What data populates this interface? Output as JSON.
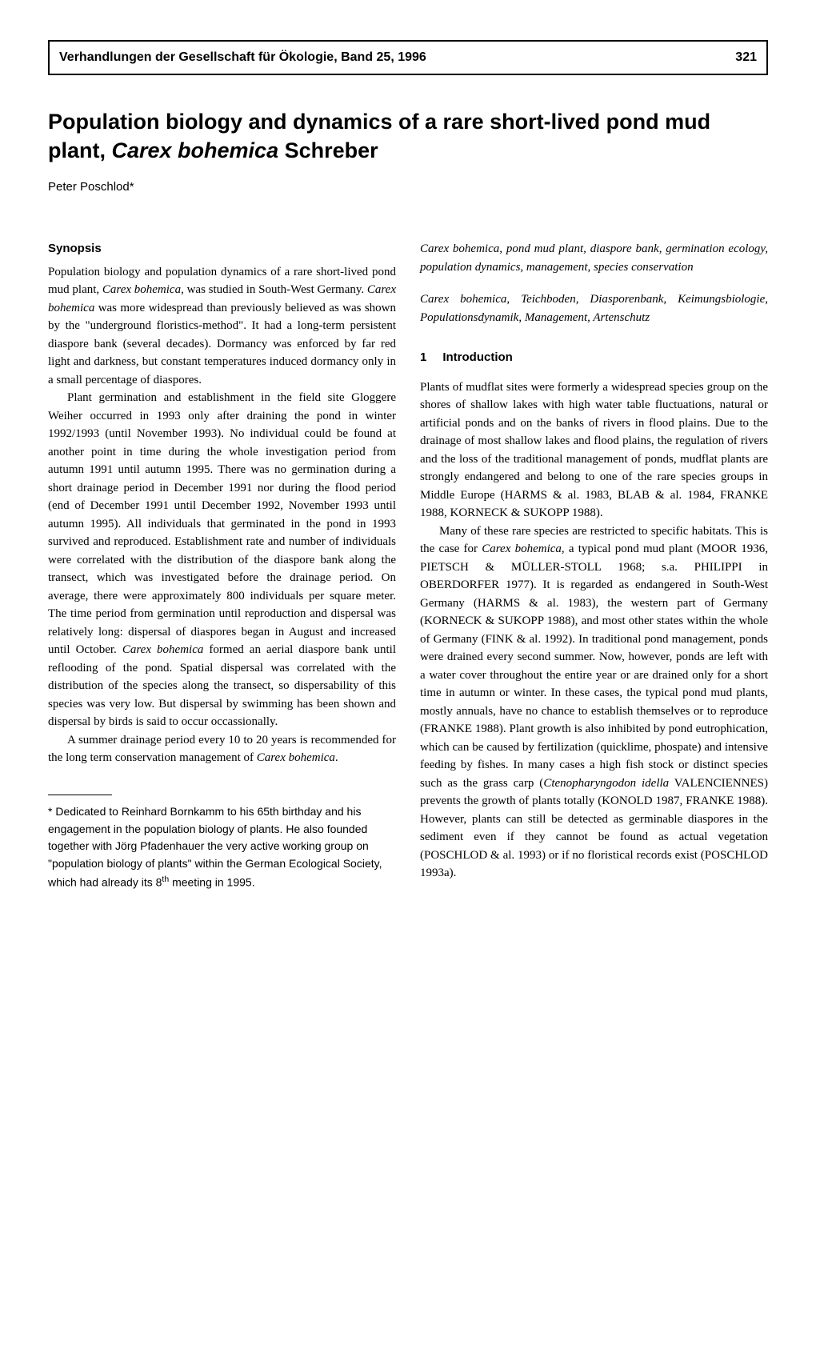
{
  "header": {
    "journal": "Verhandlungen der Gesellschaft für Ökologie, Band 25, 1996",
    "page": "321"
  },
  "title": {
    "line1": "Population biology and dynamics of a rare short-lived pond mud plant, ",
    "species": "Carex bohemica",
    "line2": " Schreber"
  },
  "author": "Peter Poschlod*",
  "synopsis": {
    "heading": "Synopsis",
    "p1": "Population biology and population dynamics of a rare short-lived pond mud plant, Carex bohemica, was studied in South-West Germany. Carex bohemica was more widespread than previously believed as was shown by the \"underground floristics-method\". It had a long-term persistent diaspore bank (several decades). Dormancy was enforced by far red light and darkness, but constant temperatures induced dormancy only in a small percentage of diaspores.",
    "p2": "Plant germination and establishment in the field site Gloggere Weiher occurred in 1993 only after draining the pond in winter 1992/1993 (until November 1993). No individual could be found at another point in time during the whole investigation period from autumn 1991 until autumn 1995. There was no germination during a short drainage period in December 1991 nor during the flood period (end of December 1991 until December 1992, November 1993 until autumn 1995). All individuals that germinated in the pond in 1993 survived and reproduced. Establishment rate and number of individuals were correlated with the distribution of the diaspore bank along the transect, which was investigated before the drainage period. On average, there were approximately 800 individuals per square meter. The time period from germination until reproduction and dispersal was relatively long: dispersal of diaspores began in August and increased until October. Carex bohemica formed an aerial diaspore bank until reflooding of the pond. Spatial dispersal was correlated with the distribution of the species along the transect, so dispersability of this species was very low. But dispersal by swimming has been shown and dispersal by birds is said to occur occassionally.",
    "p3": "A summer drainage period every 10 to 20 years is recommended for the long term conservation management of Carex bohemica."
  },
  "keywords": {
    "en": "Carex bohemica, pond mud plant, diaspore bank, germination ecology, population dynamics, management, species conservation",
    "de": "Carex bohemica, Teichboden, Diasporenbank, Keimungsbiologie, Populationsdynamik, Management, Artenschutz"
  },
  "introduction": {
    "num": "1",
    "heading": "Introduction",
    "p1": "Plants of mudflat sites were formerly a widespread species group on the shores of shallow lakes with high water table fluctuations, natural or artificial ponds and on the banks of rivers in flood plains. Due to the drainage of most shallow lakes and flood plains, the regulation of rivers and the loss of the traditional management of ponds, mudflat plants are strongly endangered and belong to one of the rare species groups in Middle Europe (HARMS & al. 1983, BLAB & al. 1984, FRANKE 1988, KORNECK & SUKOPP 1988).",
    "p2": "Many of these rare species are restricted to specific habitats. This is the case for Carex bohemica, a typical pond mud plant (MOOR 1936, PIETSCH & MÜLLER-STOLL 1968; s.a. PHILIPPI in OBERDORFER 1977). It is regarded as endangered in South-West Germany (HARMS & al. 1983), the western part of Germany (KORNECK & SUKOPP 1988), and most other states within the whole of Germany (FINK & al. 1992). In traditional pond management, ponds were drained every second summer. Now, however, ponds are left with a water cover throughout the entire year or are drained only for a short time in autumn or winter. In these cases, the typical pond mud plants, mostly annuals, have no chance to establish themselves or to reproduce (FRANKE 1988). Plant growth is also inhibited by pond eutrophication, which can be caused by fertilization (quicklime, phospate) and intensive feeding by fishes. In many cases a high fish stock or distinct species such as the grass carp (Ctenopharyngodon idella VALENCIENNES) prevents the growth of plants totally (KONOLD 1987, FRANKE 1988). However, plants can still be detected as germinable diaspores in the sediment even if they cannot be found as actual vegetation (POSCHLOD & al. 1993) or if no floristical records exist (POSCHLOD 1993a)."
  },
  "footnote": {
    "text": "* Dedicated to Reinhard Bornkamm to his 65th birthday and his engagement in the population biology of plants. He also founded together with Jörg Pfadenhauer the very active working group on \"population biology of plants\" within the German Ecological Society, which had already its 8th meeting in 1995.",
    "sup": "th"
  },
  "colors": {
    "text": "#000000",
    "background": "#ffffff",
    "border": "#000000"
  }
}
